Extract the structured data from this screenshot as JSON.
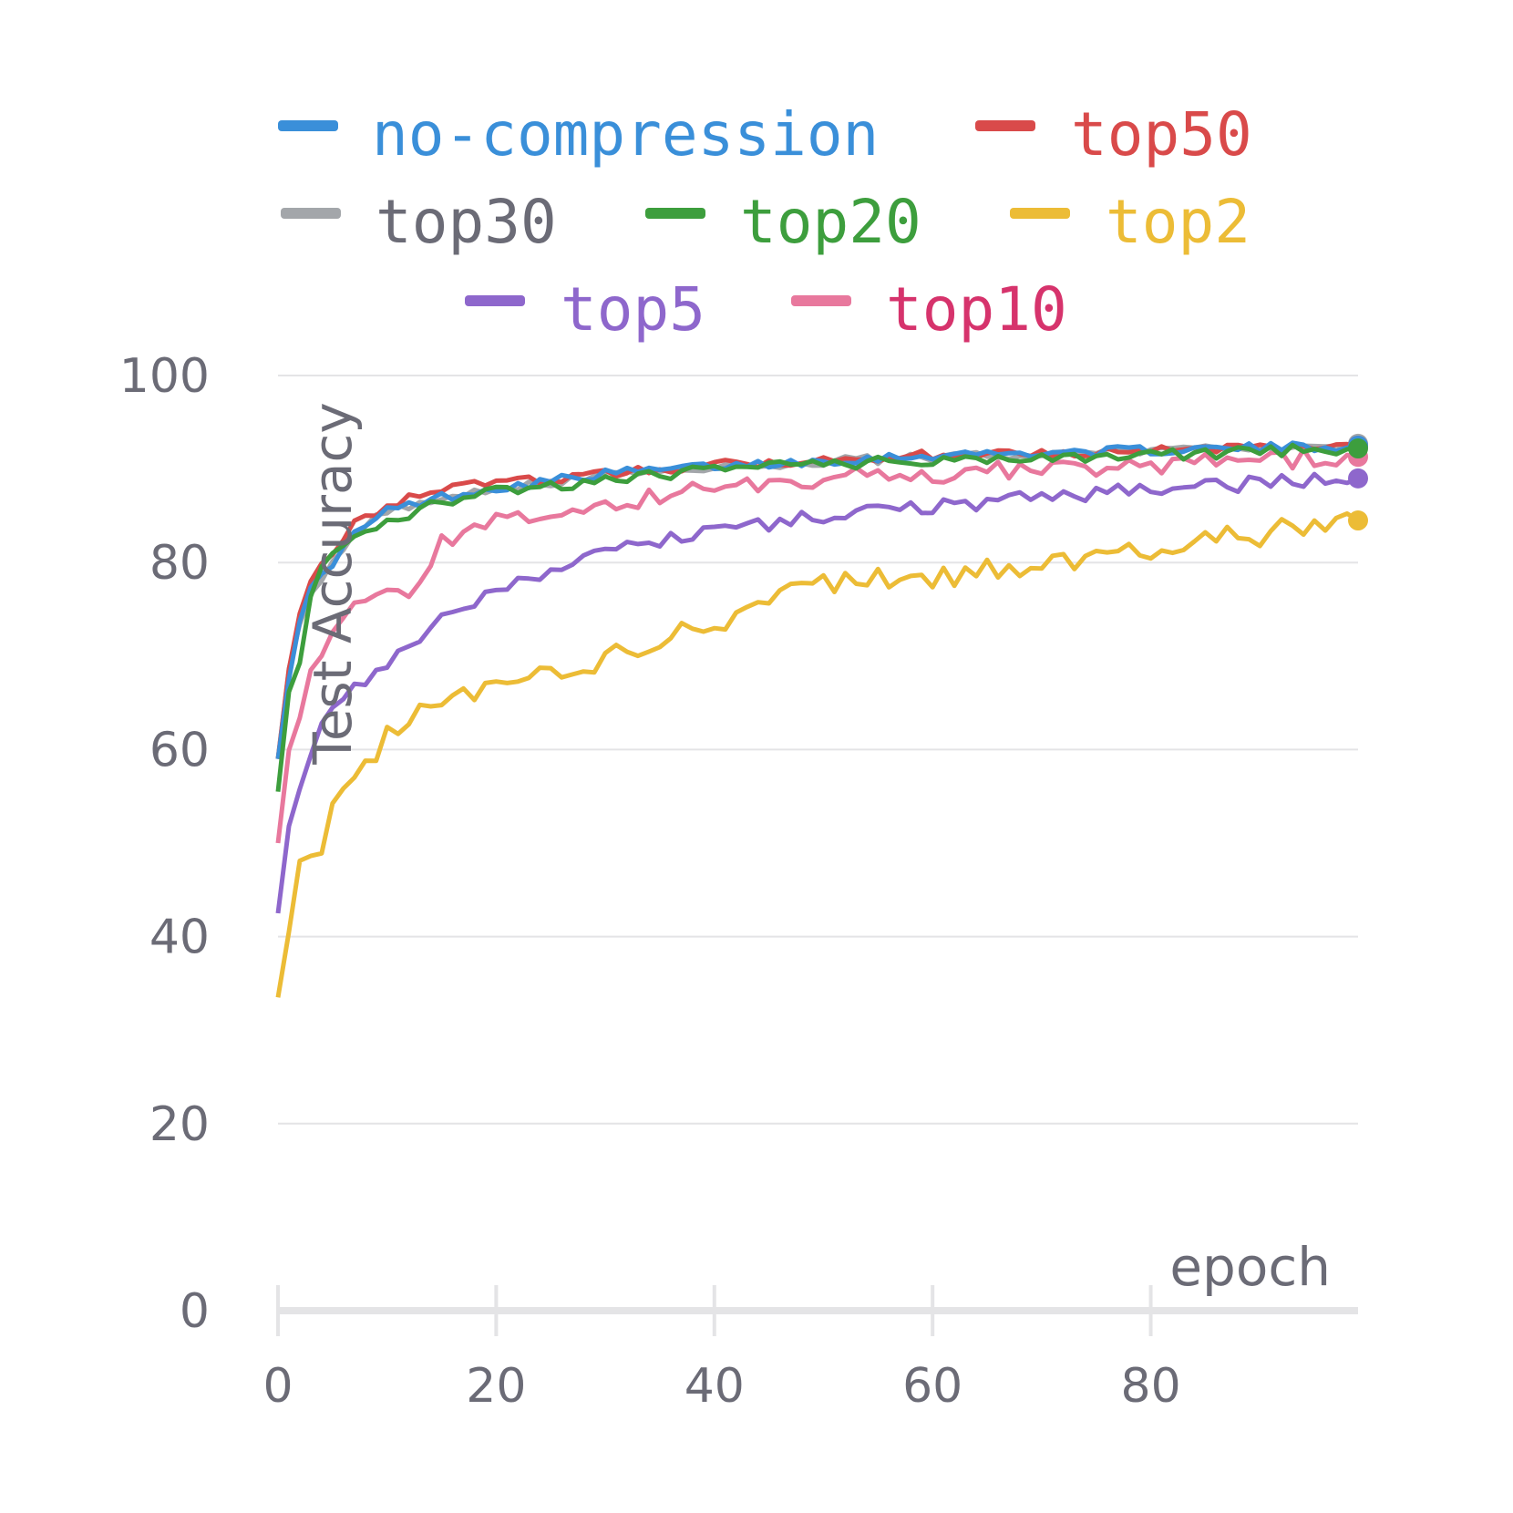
{
  "chart_data": {
    "type": "line",
    "title": "",
    "xlabel": "epoch",
    "ylabel": "Test Accuracy",
    "xlim": [
      0,
      99
    ],
    "ylim": [
      0,
      100
    ],
    "x_ticks": [
      "0",
      "20",
      "40",
      "60",
      "80"
    ],
    "y_ticks": [
      "0",
      "20",
      "40",
      "60",
      "80",
      "100"
    ],
    "grid": true,
    "legend_position": "top",
    "series": [
      {
        "name": "no-compression",
        "color": "#3a8fd9",
        "text_color": "#3a8fd9",
        "anchors": [
          [
            0,
            59
          ],
          [
            1,
            68
          ],
          [
            2,
            74
          ],
          [
            3,
            77
          ],
          [
            5,
            80
          ],
          [
            7,
            83
          ],
          [
            10,
            85.5
          ],
          [
            15,
            87
          ],
          [
            20,
            88
          ],
          [
            30,
            89.5
          ],
          [
            40,
            90.3
          ],
          [
            60,
            91.5
          ],
          [
            80,
            92
          ],
          [
            99,
            92.5
          ]
        ],
        "noise": 0.5
      },
      {
        "name": "top50",
        "color": "#d94a4a",
        "text_color": "#d94a4a",
        "anchors": [
          [
            0,
            59
          ],
          [
            1,
            69
          ],
          [
            2,
            75
          ],
          [
            3,
            78
          ],
          [
            5,
            81
          ],
          [
            7,
            84
          ],
          [
            10,
            86
          ],
          [
            15,
            88
          ],
          [
            20,
            88.5
          ],
          [
            30,
            89.5
          ],
          [
            40,
            90.5
          ],
          [
            60,
            91.5
          ],
          [
            80,
            92
          ],
          [
            99,
            92.5
          ]
        ],
        "noise": 0.5
      },
      {
        "name": "top30",
        "color": "#a3a6aa",
        "text_color": "#6b6b76",
        "anchors": [
          [
            0,
            59
          ],
          [
            1,
            69
          ],
          [
            2,
            73
          ],
          [
            3,
            77
          ],
          [
            5,
            80
          ],
          [
            7,
            83.5
          ],
          [
            10,
            85.5
          ],
          [
            15,
            87
          ],
          [
            20,
            88
          ],
          [
            30,
            89.3
          ],
          [
            40,
            90.3
          ],
          [
            60,
            91.3
          ],
          [
            80,
            92
          ],
          [
            99,
            92.7
          ]
        ],
        "noise": 0.5
      },
      {
        "name": "top20",
        "color": "#3d9e3d",
        "text_color": "#3d9e3d",
        "anchors": [
          [
            0,
            55.5
          ],
          [
            1,
            66.5
          ],
          [
            2,
            69
          ],
          [
            3,
            76
          ],
          [
            4,
            80
          ],
          [
            5,
            80.5
          ],
          [
            6,
            81.5
          ],
          [
            7,
            83
          ],
          [
            10,
            84
          ],
          [
            15,
            86.5
          ],
          [
            20,
            87.5
          ],
          [
            30,
            88.8
          ],
          [
            40,
            90
          ],
          [
            60,
            91
          ],
          [
            80,
            91.5
          ],
          [
            99,
            92.2
          ]
        ],
        "noise": 0.6
      },
      {
        "name": "top2",
        "color": "#ecbc36",
        "text_color": "#ecbc36",
        "anchors": [
          [
            0,
            33.5
          ],
          [
            1,
            41
          ],
          [
            2,
            48
          ],
          [
            4,
            49.5
          ],
          [
            5,
            55
          ],
          [
            8,
            58
          ],
          [
            10,
            62
          ],
          [
            15,
            64.5
          ],
          [
            20,
            67
          ],
          [
            30,
            69.5
          ],
          [
            40,
            73.5
          ],
          [
            50,
            78
          ],
          [
            60,
            78.5
          ],
          [
            70,
            80
          ],
          [
            80,
            81.5
          ],
          [
            90,
            83
          ],
          [
            99,
            84.5
          ]
        ],
        "noise": 1.3
      },
      {
        "name": "top5",
        "color": "#8e67cc",
        "text_color": "#8e67cc",
        "anchors": [
          [
            0,
            42.5
          ],
          [
            1,
            52
          ],
          [
            3,
            60
          ],
          [
            4,
            63
          ],
          [
            6,
            66
          ],
          [
            8,
            67.5
          ],
          [
            10,
            69
          ],
          [
            15,
            74
          ],
          [
            20,
            77.5
          ],
          [
            30,
            81
          ],
          [
            40,
            83.3
          ],
          [
            50,
            85
          ],
          [
            60,
            86
          ],
          [
            70,
            87
          ],
          [
            80,
            87.8
          ],
          [
            90,
            88.5
          ],
          [
            99,
            89
          ]
        ],
        "noise": 0.8
      },
      {
        "name": "top10",
        "color": "#e8789d",
        "text_color": "#d6336c",
        "anchors": [
          [
            0,
            50
          ],
          [
            1,
            60
          ],
          [
            2,
            64
          ],
          [
            3,
            68
          ],
          [
            5,
            72
          ],
          [
            7,
            75
          ],
          [
            10,
            78
          ],
          [
            12,
            76
          ],
          [
            15,
            82
          ],
          [
            20,
            84.5
          ],
          [
            30,
            86
          ],
          [
            40,
            88
          ],
          [
            50,
            89
          ],
          [
            60,
            89.5
          ],
          [
            80,
            90.5
          ],
          [
            99,
            91.3
          ]
        ],
        "noise": 1.0
      }
    ]
  }
}
